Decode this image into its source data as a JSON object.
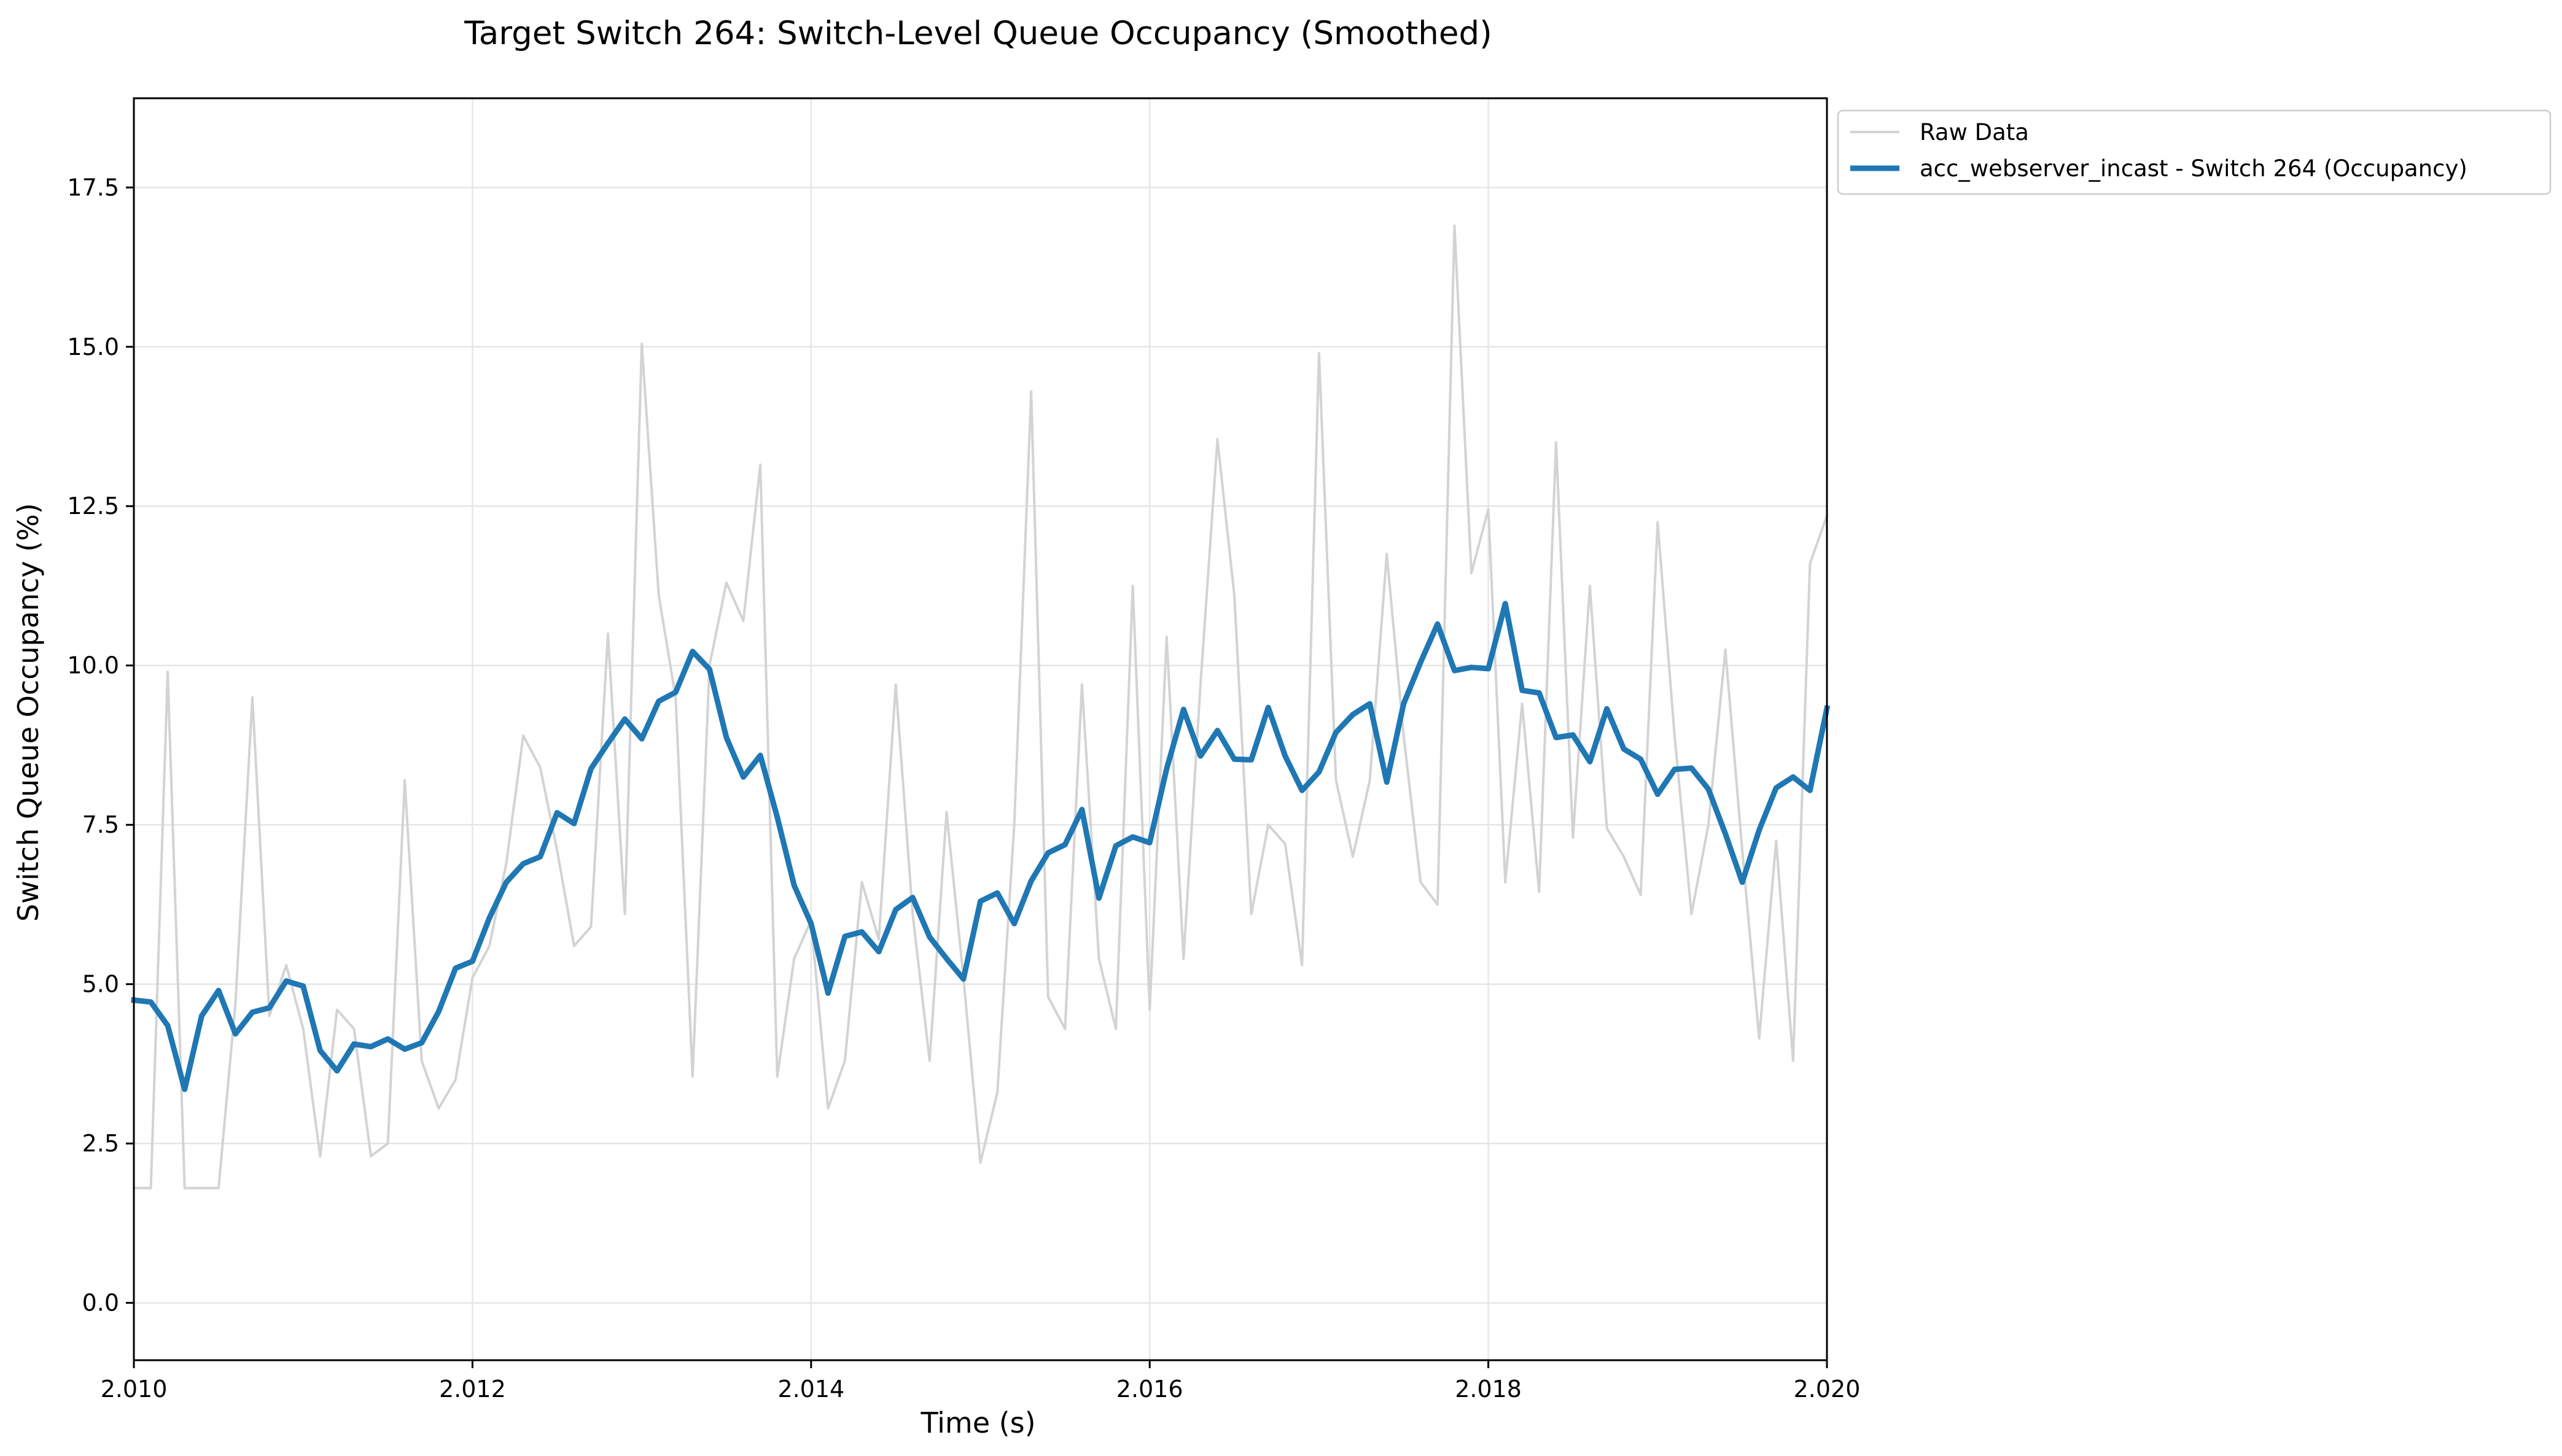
{
  "chart_data": {
    "type": "line",
    "title": "Target Switch 264: Switch-Level Queue Occupancy (Smoothed)",
    "xlabel": "Time (s)",
    "ylabel": "Switch Queue Occupancy (%)",
    "xlim": [
      2.01,
      2.02
    ],
    "ylim": [
      -0.9,
      18.9
    ],
    "xticks": [
      2.01,
      2.012,
      2.014,
      2.016,
      2.018,
      2.02
    ],
    "xtick_labels": [
      "2.010",
      "2.012",
      "2.014",
      "2.016",
      "2.018",
      "2.020"
    ],
    "yticks": [
      0.0,
      2.5,
      5.0,
      7.5,
      10.0,
      12.5,
      15.0,
      17.5
    ],
    "ytick_labels": [
      "0.0",
      "2.5",
      "5.0",
      "7.5",
      "10.0",
      "12.5",
      "15.0",
      "17.5"
    ],
    "grid": true,
    "legend_position": "outside upper-right",
    "colors": {
      "raw": "#d3d3d3",
      "smoothed": "#1f77b4",
      "grid": "#e6e6e6"
    },
    "x_step": 0.0001,
    "x_start": 2.01,
    "series": [
      {
        "name": "Raw Data",
        "style": "thin",
        "values": [
          1.8,
          1.8,
          9.9,
          1.8,
          1.8,
          1.8,
          4.7,
          9.5,
          4.5,
          5.3,
          4.3,
          2.3,
          4.6,
          4.3,
          2.3,
          2.5,
          8.2,
          3.8,
          3.05,
          3.5,
          5.1,
          5.6,
          6.9,
          8.9,
          8.4,
          7.1,
          5.6,
          5.9,
          10.5,
          6.1,
          15.05,
          11.1,
          9.5,
          3.55,
          10.0,
          11.3,
          10.7,
          13.15,
          3.55,
          5.4,
          6.0,
          3.05,
          3.8,
          6.6,
          5.7,
          9.7,
          6.1,
          3.8,
          7.7,
          5.1,
          2.2,
          3.3,
          7.5,
          14.3,
          4.8,
          4.3,
          9.7,
          5.4,
          4.3,
          11.25,
          4.6,
          10.45,
          5.4,
          9.7,
          13.55,
          11.1,
          6.1,
          7.5,
          7.2,
          5.3,
          14.9,
          8.2,
          7.0,
          8.2,
          11.75,
          8.9,
          6.6,
          6.25,
          16.9,
          11.45,
          12.45,
          6.6,
          9.4,
          6.45,
          13.5,
          7.3,
          11.25,
          7.45,
          7.0,
          6.4,
          12.25,
          8.9,
          6.1,
          7.5,
          10.25,
          7.1,
          4.15,
          7.25,
          3.8,
          11.6,
          12.35
        ]
      },
      {
        "name": "acc_webserver_incast - Switch 264 (Occupancy)",
        "style": "thick",
        "values": [
          4.75,
          4.72,
          4.35,
          3.35,
          4.5,
          4.9,
          4.22,
          4.56,
          4.63,
          5.05,
          4.97,
          3.96,
          3.64,
          4.06,
          4.02,
          4.14,
          3.98,
          4.08,
          4.57,
          5.25,
          5.36,
          6.04,
          6.6,
          6.89,
          7.0,
          7.69,
          7.52,
          8.38,
          8.78,
          9.16,
          8.85,
          9.44,
          9.58,
          10.22,
          9.94,
          8.87,
          8.25,
          8.59,
          7.62,
          6.55,
          5.95,
          4.86,
          5.75,
          5.82,
          5.51,
          6.17,
          6.36,
          5.74,
          5.4,
          5.08,
          6.3,
          6.43,
          5.95,
          6.62,
          7.06,
          7.19,
          7.74,
          6.35,
          7.17,
          7.31,
          7.22,
          8.38,
          9.31,
          8.58,
          8.98,
          8.53,
          8.52,
          9.34,
          8.58,
          8.04,
          8.33,
          8.95,
          9.23,
          9.4,
          8.17,
          9.4,
          10.05,
          10.65,
          9.92,
          9.97,
          9.95,
          10.97,
          9.61,
          9.57,
          8.87,
          8.91,
          8.49,
          9.32,
          8.69,
          8.53,
          7.98,
          8.37,
          8.39,
          8.06,
          7.36,
          6.6,
          7.42,
          8.08,
          8.25,
          8.04,
          9.33
        ]
      }
    ]
  }
}
